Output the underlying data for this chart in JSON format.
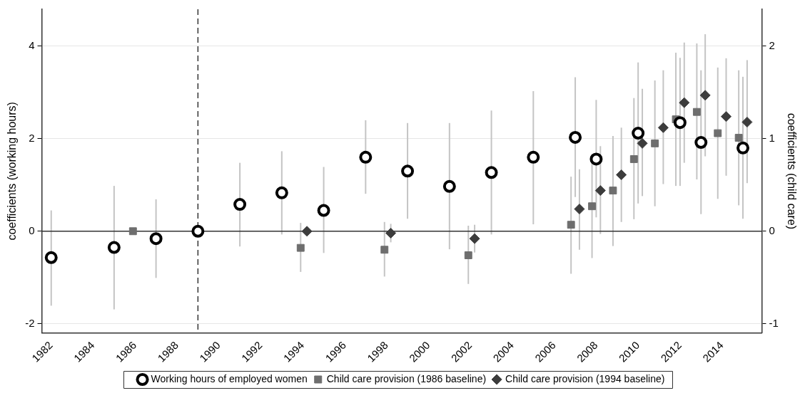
{
  "chart_data": {
    "type": "scatter",
    "ylabel": "coefficients (working hours)",
    "y2label": "coefficients (child care)",
    "xlim": [
      1981.55,
      2015.9
    ],
    "xticks": [
      1982,
      1984,
      1986,
      1988,
      1990,
      1992,
      1994,
      1996,
      1998,
      2000,
      2002,
      2004,
      2006,
      2008,
      2010,
      2012,
      2014
    ],
    "ylim": [
      -2.2,
      4.8
    ],
    "yticks": [
      -2,
      0,
      2,
      4
    ],
    "y2lim": [
      -1.1,
      2.4
    ],
    "y2ticks": [
      -1,
      0,
      1,
      2
    ],
    "grid": "y",
    "legend": "bottom",
    "ref_lines": [
      {
        "axis": "y",
        "value": 0,
        "color": "#333333",
        "line_style": "solid"
      },
      {
        "axis": "x",
        "value": 1989,
        "color": "#333333",
        "line_style": "dashed"
      }
    ],
    "series": [
      {
        "name": "Working hours of employed women",
        "color": "#000000",
        "marker": "circle",
        "axis": "y",
        "x": [
          1982,
          1985,
          1987,
          1989,
          1991,
          1993,
          1995,
          1997,
          1999,
          2001,
          2003,
          2005,
          2007,
          2008,
          2010,
          2012,
          2013,
          2015
        ],
        "values": [
          -0.57,
          -0.35,
          -0.16,
          0,
          0.58,
          0.83,
          0.45,
          1.6,
          1.3,
          0.97,
          1.27,
          1.6,
          2.03,
          1.56,
          2.12,
          2.35,
          1.92,
          1.8
        ],
        "errors": [
          [
            -1.61,
            0.45
          ],
          [
            -1.69,
            0.98
          ],
          [
            -1.01,
            0.69
          ],
          null,
          [
            -0.33,
            1.48
          ],
          [
            -0.07,
            1.73
          ],
          [
            -0.47,
            1.39
          ],
          [
            0.81,
            2.4
          ],
          [
            0.27,
            2.34
          ],
          [
            -0.39,
            2.34
          ],
          [
            -0.07,
            2.61
          ],
          [
            0.15,
            3.03
          ],
          [
            0.74,
            3.33
          ],
          [
            0.3,
            2.84
          ],
          [
            0.6,
            3.65
          ],
          [
            0.98,
            3.75
          ],
          [
            0.37,
            3.48
          ],
          [
            0.27,
            3.34
          ]
        ]
      },
      {
        "name": "Child care provision (1986 baseline)",
        "color": "#6e6e6e",
        "marker": "square",
        "axis": "y2",
        "x": [
          1985.9,
          1993.9,
          1997.9,
          2001.9,
          2006.8,
          2007.8,
          2008.8,
          2009.8,
          2010.8,
          2011.8,
          2012.8,
          2013.8,
          2014.8
        ],
        "values": [
          0,
          -0.18,
          -0.2,
          -0.26,
          0.07,
          0.27,
          0.44,
          0.78,
          0.95,
          1.21,
          1.29,
          1.06,
          1.01
        ],
        "errors": [
          null,
          [
            -0.44,
            0.09
          ],
          [
            -0.49,
            0.1
          ],
          [
            -0.57,
            0.06
          ],
          [
            -0.46,
            0.59
          ],
          [
            -0.29,
            0.83
          ],
          [
            -0.16,
            1.03
          ],
          [
            0.13,
            1.44
          ],
          [
            0.27,
            1.63
          ],
          [
            0.49,
            1.93
          ],
          [
            0.56,
            2.03
          ],
          [
            0.35,
            1.77
          ],
          [
            0.28,
            1.74
          ]
        ]
      },
      {
        "name": "Child care provision (1994 baseline)",
        "color": "#3c3c3c",
        "marker": "diamond",
        "axis": "y2",
        "x": [
          1994.2,
          1998.2,
          2002.2,
          2007.2,
          2008.2,
          2009.2,
          2010.2,
          2011.2,
          2012.2,
          2013.2,
          2014.2,
          2015.2
        ],
        "values": [
          0,
          -0.02,
          -0.08,
          0.24,
          0.44,
          0.61,
          0.95,
          1.12,
          1.39,
          1.47,
          1.24,
          1.18
        ],
        "errors": [
          null,
          [
            -0.12,
            0.08
          ],
          [
            -0.23,
            0.07
          ],
          [
            -0.2,
            0.67
          ],
          [
            -0.03,
            0.92
          ],
          [
            0.1,
            1.12
          ],
          [
            0.38,
            1.54
          ],
          [
            0.51,
            1.74
          ],
          [
            0.74,
            2.04
          ],
          [
            0.81,
            2.13
          ],
          [
            0.6,
            1.87
          ],
          [
            0.52,
            1.85
          ]
        ]
      }
    ]
  }
}
